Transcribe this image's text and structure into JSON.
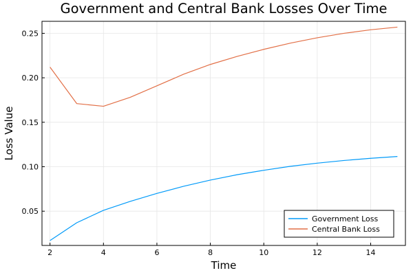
{
  "chart_data": {
    "type": "line",
    "title": "Government and Central Bank Losses Over Time",
    "xlabel": "Time",
    "ylabel": "Loss Value",
    "xlim": [
      1.7,
      15.3
    ],
    "ylim": [
      0.0115,
      0.2635
    ],
    "xticks": [
      2,
      4,
      6,
      8,
      10,
      12,
      14
    ],
    "yticks": [
      0.05,
      0.1,
      0.15,
      0.2,
      0.25
    ],
    "ytick_labels": [
      "0.05",
      "0.10",
      "0.15",
      "0.20",
      "0.25"
    ],
    "grid": true,
    "legend_position": "bottom-right",
    "x": [
      2,
      3,
      4,
      5,
      6,
      7,
      8,
      9,
      10,
      11,
      12,
      13,
      14,
      15
    ],
    "series": [
      {
        "name": "Government Loss",
        "color": "#009af9",
        "values": [
          0.017,
          0.037,
          0.051,
          0.061,
          0.07,
          0.078,
          0.085,
          0.091,
          0.096,
          0.1005,
          0.104,
          0.107,
          0.1095,
          0.1115
        ]
      },
      {
        "name": "Central Bank Loss",
        "color": "#e26f46",
        "values": [
          0.212,
          0.171,
          0.168,
          0.178,
          0.191,
          0.204,
          0.215,
          0.224,
          0.232,
          0.239,
          0.245,
          0.25,
          0.254,
          0.257
        ]
      }
    ]
  }
}
